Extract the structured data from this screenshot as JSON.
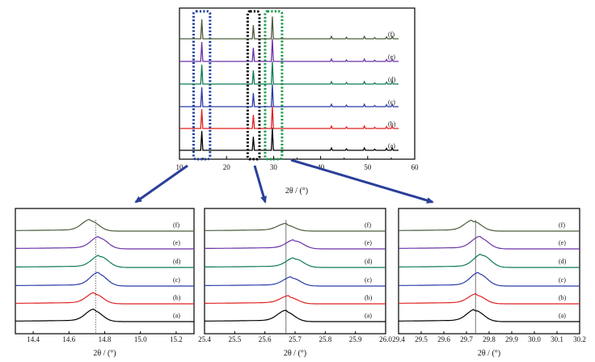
{
  "colors": {
    "a": "#000000",
    "b": "#e02020",
    "c": "#2a3aa8",
    "d": "#0f7a55",
    "e": "#6a32a8",
    "f": "#4a5a3a",
    "box_blue": "#1f3fa0",
    "box_black": "#000000",
    "box_green": "#1a9a4a",
    "arrow": "#2a3f9a",
    "ref_line": "#555555"
  },
  "chart_data": [
    {
      "id": "main",
      "type": "line",
      "xlabel": "2θ / (°)",
      "xlim": [
        10,
        60
      ],
      "xticks": [
        "10",
        "20",
        "30",
        "40",
        "50",
        "60"
      ],
      "grid": false,
      "series_order": [
        "a",
        "b",
        "c",
        "d",
        "e",
        "f"
      ],
      "series_labels": [
        "(a)",
        "(b)",
        "(c)",
        "(d)",
        "(e)",
        "(f)"
      ],
      "peaks": [
        {
          "x": 14.75,
          "h": 1.0
        },
        {
          "x": 25.7,
          "h": 0.7
        },
        {
          "x": 29.75,
          "h": 1.15
        },
        {
          "x": 42.3,
          "h": 0.12
        },
        {
          "x": 45.5,
          "h": 0.08
        },
        {
          "x": 49.3,
          "h": 0.12
        },
        {
          "x": 51.5,
          "h": 0.06
        },
        {
          "x": 54.0,
          "h": 0.1
        },
        {
          "x": 55.2,
          "h": 0.12
        }
      ],
      "highlight_regions": [
        {
          "name": "region-14.75",
          "xmin": 13.0,
          "xmax": 16.5,
          "color": "box_blue"
        },
        {
          "name": "region-25.7",
          "xmin": 24.5,
          "xmax": 27.0,
          "color": "box_black"
        },
        {
          "name": "region-29.75",
          "xmin": 28.2,
          "xmax": 31.8,
          "color": "box_green"
        }
      ]
    },
    {
      "id": "zoom-1",
      "type": "line",
      "xlabel": "2θ / (°)",
      "xlim": [
        14.3,
        15.3
      ],
      "xticks": [
        "14.4",
        "14.6",
        "14.8",
        "15.0",
        "15.2"
      ],
      "ref_x": 14.75,
      "series": [
        {
          "name": "(a)",
          "center": 14.74,
          "height": 0.9,
          "tilt": 0.0
        },
        {
          "name": "(b)",
          "center": 14.745,
          "height": 0.8,
          "tilt": 0.0
        },
        {
          "name": "(c)",
          "center": 14.765,
          "height": 1.0,
          "tilt": 0.0
        },
        {
          "name": "(d)",
          "center": 14.775,
          "height": 0.9,
          "tilt": 0.0
        },
        {
          "name": "(e)",
          "center": 14.77,
          "height": 0.9,
          "tilt": 0.0
        },
        {
          "name": "(f)",
          "center": 14.72,
          "height": 0.85,
          "tilt": 0.0
        }
      ]
    },
    {
      "id": "zoom-2",
      "type": "line",
      "xlabel": "2θ / (°)",
      "xlim": [
        25.4,
        26.0
      ],
      "xticks": [
        "25.4",
        "25.5",
        "25.6",
        "25.7",
        "25.8",
        "25.9",
        "26.0"
      ],
      "ref_x": 25.67,
      "series": [
        {
          "name": "(a)",
          "center": 25.67,
          "height": 0.8,
          "tilt": 0.0
        },
        {
          "name": "(b)",
          "center": 25.68,
          "height": 0.55,
          "tilt": 0.0
        },
        {
          "name": "(c)",
          "center": 25.69,
          "height": 0.65,
          "tilt": 0.0
        },
        {
          "name": "(d)",
          "center": 25.7,
          "height": 0.7,
          "tilt": 0.0
        },
        {
          "name": "(e)",
          "center": 25.7,
          "height": 0.65,
          "tilt": 0.0
        },
        {
          "name": "(f)",
          "center": 25.67,
          "height": 0.5,
          "tilt": 0.0
        }
      ]
    },
    {
      "id": "zoom-3",
      "type": "line",
      "xlabel": "2θ / (°)",
      "xlim": [
        29.4,
        30.2
      ],
      "xticks": [
        "29.4",
        "29.5",
        "29.6",
        "29.7",
        "29.8",
        "29.9",
        "30.0",
        "30.1",
        "30.2"
      ],
      "ref_x": 29.74,
      "series": [
        {
          "name": "(a)",
          "center": 29.74,
          "height": 0.9,
          "tilt": 0.0
        },
        {
          "name": "(b)",
          "center": 29.745,
          "height": 0.7,
          "tilt": 0.0
        },
        {
          "name": "(c)",
          "center": 29.755,
          "height": 1.0,
          "tilt": 0.0
        },
        {
          "name": "(d)",
          "center": 29.77,
          "height": 1.0,
          "tilt": 0.0
        },
        {
          "name": "(e)",
          "center": 29.76,
          "height": 0.9,
          "tilt": 0.0
        },
        {
          "name": "(f)",
          "center": 29.73,
          "height": 0.8,
          "tilt": 0.0
        }
      ]
    }
  ]
}
